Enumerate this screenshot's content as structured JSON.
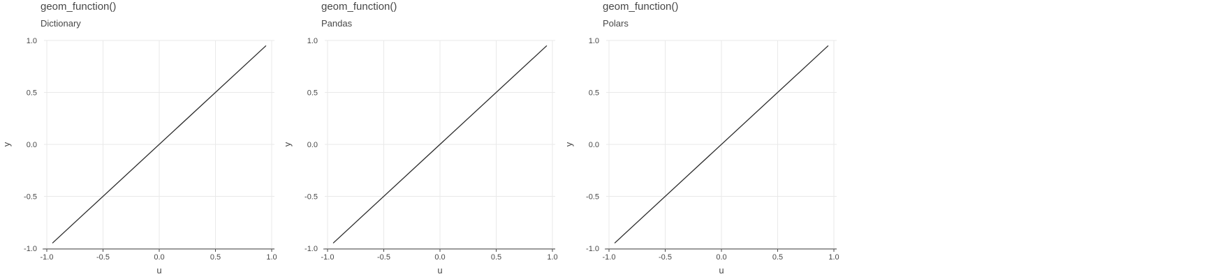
{
  "chart_data": [
    {
      "type": "line",
      "title": "geom_function()",
      "subtitle": "Dictionary",
      "xlabel": "u",
      "ylabel": "y",
      "xlim": [
        -1.0,
        1.0
      ],
      "ylim": [
        -1.0,
        1.0
      ],
      "x_ticks": [
        "-1.0",
        "-0.5",
        "0.0",
        "0.5",
        "1.0"
      ],
      "y_ticks": [
        "-1.0",
        "-0.5",
        "0.0",
        "0.5",
        "1.0"
      ],
      "grid": true,
      "series": [
        {
          "x": [
            -0.95,
            0.95
          ],
          "y": [
            -0.95,
            0.95
          ],
          "color": "#2b2b2b"
        }
      ]
    },
    {
      "type": "line",
      "title": "geom_function()",
      "subtitle": "Pandas",
      "xlabel": "u",
      "ylabel": "y",
      "xlim": [
        -1.0,
        1.0
      ],
      "ylim": [
        -1.0,
        1.0
      ],
      "x_ticks": [
        "-1.0",
        "-0.5",
        "0.0",
        "0.5",
        "1.0"
      ],
      "y_ticks": [
        "-1.0",
        "-0.5",
        "0.0",
        "0.5",
        "1.0"
      ],
      "grid": true,
      "series": [
        {
          "x": [
            -0.95,
            0.95
          ],
          "y": [
            -0.95,
            0.95
          ],
          "color": "#2b2b2b"
        }
      ]
    },
    {
      "type": "line",
      "title": "geom_function()",
      "subtitle": "Polars",
      "xlabel": "u",
      "ylabel": "y",
      "xlim": [
        -1.0,
        1.0
      ],
      "ylim": [
        -1.0,
        1.0
      ],
      "x_ticks": [
        "-1.0",
        "-0.5",
        "0.0",
        "0.5",
        "1.0"
      ],
      "y_ticks": [
        "-1.0",
        "-0.5",
        "0.0",
        "0.5",
        "1.0"
      ],
      "grid": true,
      "series": [
        {
          "x": [
            -0.95,
            0.95
          ],
          "y": [
            -0.95,
            0.95
          ],
          "color": "#2b2b2b"
        }
      ]
    }
  ]
}
